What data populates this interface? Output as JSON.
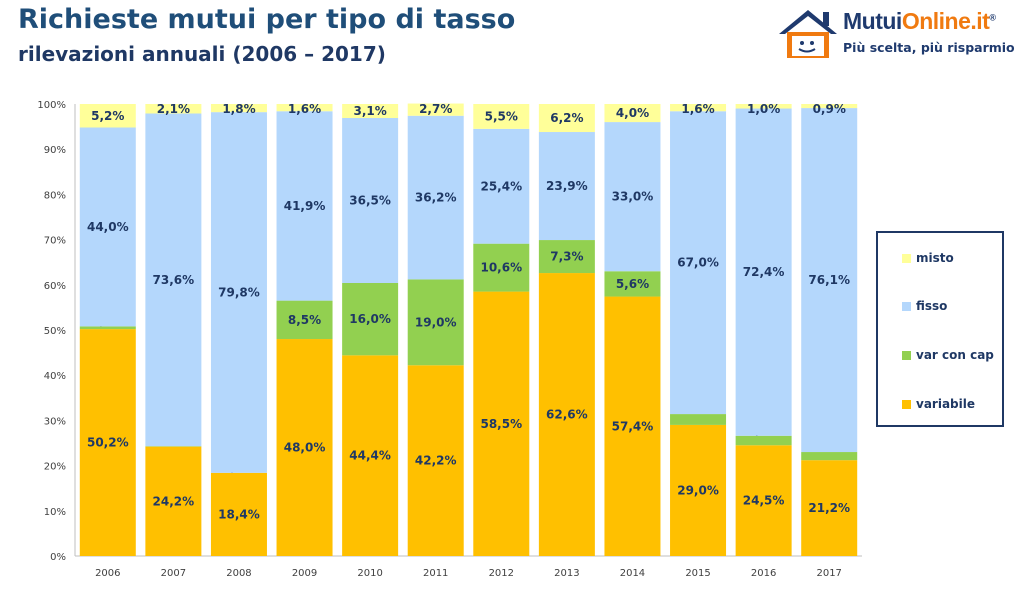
{
  "header": {
    "title": "Richieste mutui per tipo di tasso",
    "subtitle": "rilevazioni annuali (2006 – 2017)"
  },
  "logo": {
    "brand_a": "Mutui",
    "brand_b": "Online.it",
    "reg": "®",
    "tagline": "Più scelta, più risparmio"
  },
  "colors": {
    "variabile": "#ffc000",
    "var con cap": "#92d050",
    "fisso": "#b4d7fc",
    "misto": "#ffff99",
    "text": "#1f3864"
  },
  "chart_data": {
    "type": "bar",
    "stacked": true,
    "title": "",
    "xlabel": "",
    "ylabel": "",
    "ylim": [
      0,
      100
    ],
    "yticks": [
      "0%",
      "10%",
      "20%",
      "30%",
      "40%",
      "50%",
      "60%",
      "70%",
      "80%",
      "90%",
      "100%"
    ],
    "categories": [
      "2006",
      "2007",
      "2008",
      "2009",
      "2010",
      "2011",
      "2012",
      "2013",
      "2014",
      "2015",
      "2016",
      "2017"
    ],
    "legend_position": "right",
    "series": [
      {
        "name": "variabile",
        "values": [
          50.2,
          24.2,
          18.4,
          48.0,
          44.4,
          42.2,
          58.5,
          62.6,
          57.4,
          29.0,
          24.5,
          21.2
        ]
      },
      {
        "name": "var con cap",
        "values": [
          0.6,
          0.1,
          0.0,
          8.5,
          16.0,
          19.0,
          10.6,
          7.3,
          5.6,
          2.4,
          2.1,
          1.8
        ]
      },
      {
        "name": "fisso",
        "values": [
          44.0,
          73.6,
          79.8,
          41.9,
          36.5,
          36.2,
          25.4,
          23.9,
          33.0,
          67.0,
          72.4,
          76.1
        ]
      },
      {
        "name": "misto",
        "values": [
          5.2,
          2.1,
          1.8,
          1.6,
          3.1,
          2.7,
          5.5,
          6.2,
          4.0,
          1.6,
          1.0,
          0.9
        ]
      }
    ],
    "legend": [
      "misto",
      "fisso",
      "var con cap",
      "variabile"
    ]
  }
}
